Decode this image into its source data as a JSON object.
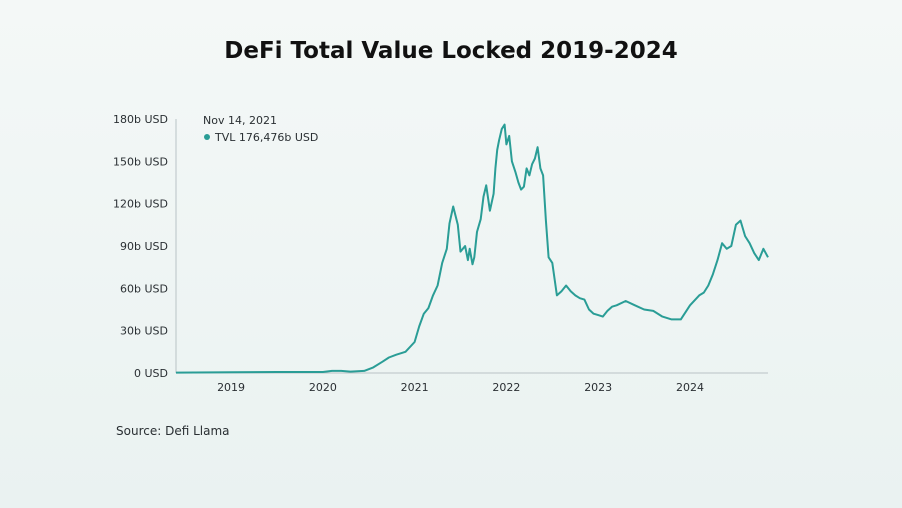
{
  "chart_data": {
    "type": "line",
    "title": "DeFi Total Value Locked 2019-2024",
    "source": "Source: Defi Llama",
    "y_ticks": [
      "0 USD",
      "30b USD",
      "60b USD",
      "90b USD",
      "120b USD",
      "150b USD",
      "180b USD"
    ],
    "ylim": [
      0,
      180
    ],
    "xlim": [
      2018.4,
      2024.85
    ],
    "x_ticks": [
      "2019",
      "2020",
      "2021",
      "2022",
      "2023",
      "2024"
    ],
    "series": [
      {
        "color": "#2a9d96",
        "x": [
          2018.4,
          2019.0,
          2019.5,
          2020.0,
          2020.1,
          2020.2,
          2020.3,
          2020.45,
          2020.55,
          2020.65,
          2020.72,
          2020.8,
          2020.9,
          2021.0,
          2021.05,
          2021.1,
          2021.15,
          2021.2,
          2021.25,
          2021.3,
          2021.35,
          2021.38,
          2021.42,
          2021.47,
          2021.5,
          2021.55,
          2021.58,
          2021.6,
          2021.63,
          2021.65,
          2021.68,
          2021.72,
          2021.75,
          2021.78,
          2021.82,
          2021.86,
          2021.88,
          2021.9,
          2021.92,
          2021.95,
          2021.98,
          2022.0,
          2022.03,
          2022.06,
          2022.1,
          2022.13,
          2022.16,
          2022.19,
          2022.22,
          2022.25,
          2022.28,
          2022.31,
          2022.34,
          2022.37,
          2022.4,
          2022.43,
          2022.46,
          2022.5,
          2022.55,
          2022.6,
          2022.65,
          2022.7,
          2022.75,
          2022.8,
          2022.85,
          2022.9,
          2022.95,
          2023.0,
          2023.05,
          2023.1,
          2023.15,
          2023.2,
          2023.3,
          2023.4,
          2023.5,
          2023.6,
          2023.7,
          2023.8,
          2023.9,
          2024.0,
          2024.1,
          2024.15,
          2024.2,
          2024.25,
          2024.3,
          2024.35,
          2024.4,
          2024.45,
          2024.5,
          2024.55,
          2024.6,
          2024.65,
          2024.7,
          2024.75,
          2024.8,
          2024.85
        ],
        "values": [
          0.3,
          0.6,
          0.7,
          0.7,
          1.5,
          1.5,
          1.0,
          1.5,
          4.0,
          8.0,
          11.0,
          13.0,
          15.0,
          22.0,
          33.0,
          42.0,
          46.0,
          55.0,
          62.0,
          78.0,
          88.0,
          106.0,
          118.0,
          105.0,
          86.0,
          90.0,
          80.0,
          88.0,
          77.0,
          82.0,
          100.0,
          109.0,
          125.0,
          133.0,
          115.0,
          127.0,
          145.0,
          158.0,
          165.0,
          173.0,
          176.0,
          162.0,
          168.0,
          150.0,
          142.0,
          135.0,
          130.0,
          132.0,
          145.0,
          140.0,
          148.0,
          152.0,
          160.0,
          145.0,
          140.0,
          108.0,
          82.0,
          78.0,
          55.0,
          58.0,
          62.0,
          58.0,
          55.0,
          53.0,
          52.0,
          45.0,
          42.0,
          41.0,
          40.0,
          44.0,
          47.0,
          48.0,
          51.0,
          48.0,
          45.0,
          44.0,
          40.0,
          38.0,
          38.0,
          48.0,
          55.0,
          57.0,
          62.0,
          70.0,
          80.0,
          92.0,
          88.0,
          90.0,
          105.0,
          108.0,
          97.0,
          92.0,
          85.0,
          80.0,
          88.0,
          82.0
        ]
      }
    ],
    "tooltip": {
      "date": "Nov 14, 2021",
      "label": "TVL 176,476b USD"
    },
    "grid": false,
    "legend": "none"
  }
}
